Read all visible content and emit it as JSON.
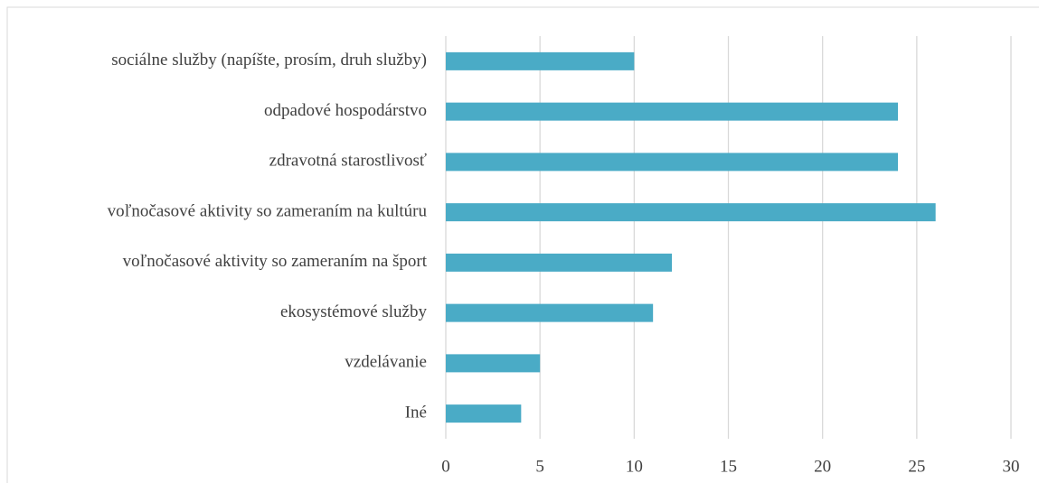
{
  "chart_data": {
    "type": "bar",
    "orientation": "horizontal",
    "categories": [
      "sociálne služby (napíšte, prosím, druh služby)",
      "odpadové hospodárstvo",
      "zdravotná starostlivosť",
      "voľnočasové aktivity so zameraním na kultúru",
      "voľnočasové aktivity so zameraním na šport",
      "ekosystémové služby",
      "vzdelávanie",
      "Iné"
    ],
    "values": [
      10,
      24,
      24,
      26,
      12,
      11,
      5,
      4
    ],
    "color": "#4aabc6",
    "xlim": [
      0,
      30
    ],
    "xticks": [
      0,
      5,
      10,
      15,
      20,
      25,
      30
    ],
    "grid": true
  }
}
